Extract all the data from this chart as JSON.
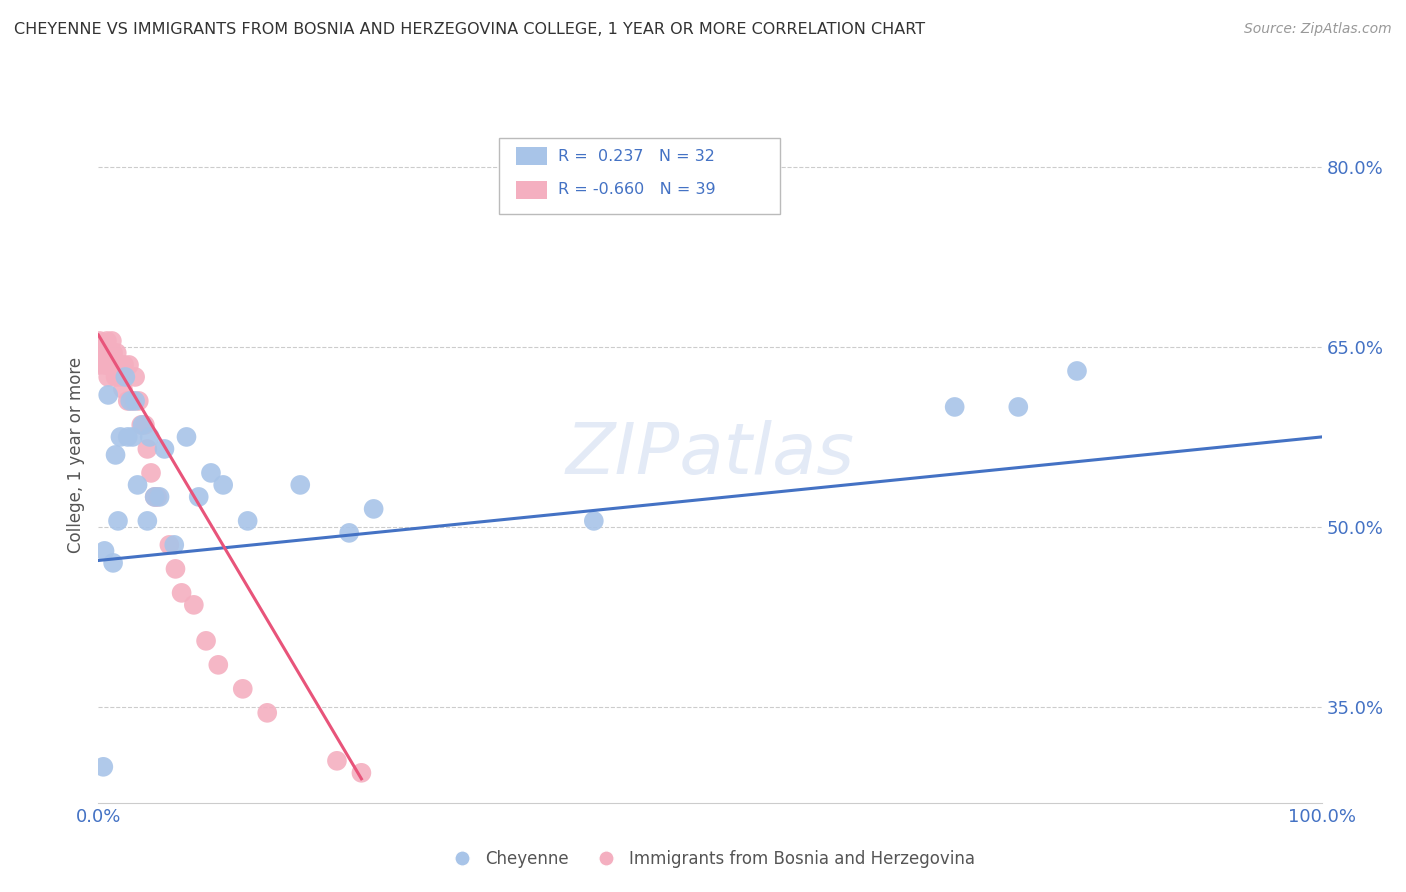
{
  "title": "CHEYENNE VS IMMIGRANTS FROM BOSNIA AND HERZEGOVINA COLLEGE, 1 YEAR OR MORE CORRELATION CHART",
  "source": "Source: ZipAtlas.com",
  "ylabel": "College, 1 year or more",
  "xlim": [
    0.0,
    1.0
  ],
  "ylim": [
    0.27,
    0.85
  ],
  "ytick_labels": [
    "35.0%",
    "50.0%",
    "65.0%",
    "80.0%"
  ],
  "ytick_values": [
    0.35,
    0.5,
    0.65,
    0.8
  ],
  "xtick_labels": [
    "0.0%",
    "100.0%"
  ],
  "xtick_values": [
    0.0,
    1.0
  ],
  "blue_R": "0.237",
  "blue_N": "32",
  "pink_R": "-0.660",
  "pink_N": "39",
  "blue_color": "#a8c4e8",
  "pink_color": "#f4afc0",
  "blue_line_color": "#4472c4",
  "pink_line_color": "#e8547a",
  "watermark": "ZIPatlas",
  "blue_scatter_x": [
    0.004,
    0.005,
    0.008,
    0.012,
    0.014,
    0.016,
    0.018,
    0.022,
    0.024,
    0.026,
    0.028,
    0.03,
    0.032,
    0.036,
    0.04,
    0.042,
    0.046,
    0.05,
    0.054,
    0.062,
    0.072,
    0.082,
    0.092,
    0.102,
    0.122,
    0.165,
    0.205,
    0.225,
    0.405,
    0.7,
    0.752,
    0.8
  ],
  "blue_scatter_y": [
    0.3,
    0.48,
    0.61,
    0.47,
    0.56,
    0.505,
    0.575,
    0.625,
    0.575,
    0.605,
    0.575,
    0.605,
    0.535,
    0.585,
    0.505,
    0.575,
    0.525,
    0.525,
    0.565,
    0.485,
    0.575,
    0.525,
    0.545,
    0.535,
    0.505,
    0.535,
    0.495,
    0.515,
    0.505,
    0.6,
    0.6,
    0.63
  ],
  "pink_scatter_x": [
    0.0,
    0.001,
    0.002,
    0.003,
    0.005,
    0.007,
    0.008,
    0.009,
    0.01,
    0.011,
    0.012,
    0.013,
    0.014,
    0.015,
    0.017,
    0.018,
    0.02,
    0.021,
    0.024,
    0.025,
    0.028,
    0.03,
    0.033,
    0.035,
    0.038,
    0.04,
    0.043,
    0.046,
    0.048,
    0.058,
    0.063,
    0.068,
    0.078,
    0.088,
    0.098,
    0.118,
    0.138,
    0.195,
    0.215
  ],
  "pink_scatter_y": [
    0.635,
    0.655,
    0.645,
    0.645,
    0.635,
    0.655,
    0.625,
    0.635,
    0.635,
    0.655,
    0.645,
    0.635,
    0.625,
    0.645,
    0.635,
    0.625,
    0.615,
    0.635,
    0.605,
    0.635,
    0.605,
    0.625,
    0.605,
    0.585,
    0.585,
    0.565,
    0.545,
    0.525,
    0.525,
    0.485,
    0.465,
    0.445,
    0.435,
    0.405,
    0.385,
    0.365,
    0.345,
    0.305,
    0.295
  ],
  "blue_line_x": [
    0.0,
    1.0
  ],
  "blue_line_y_start": 0.472,
  "blue_line_y_end": 0.575,
  "pink_line_x": [
    0.0,
    0.215
  ],
  "pink_line_y_start": 0.66,
  "pink_line_y_end": 0.29,
  "legend_R_blue": "R =  0.237   N = 32",
  "legend_R_pink": "R = -0.660   N = 39",
  "legend_label_blue": "Cheyenne",
  "legend_label_pink": "Immigrants from Bosnia and Herzegovina"
}
